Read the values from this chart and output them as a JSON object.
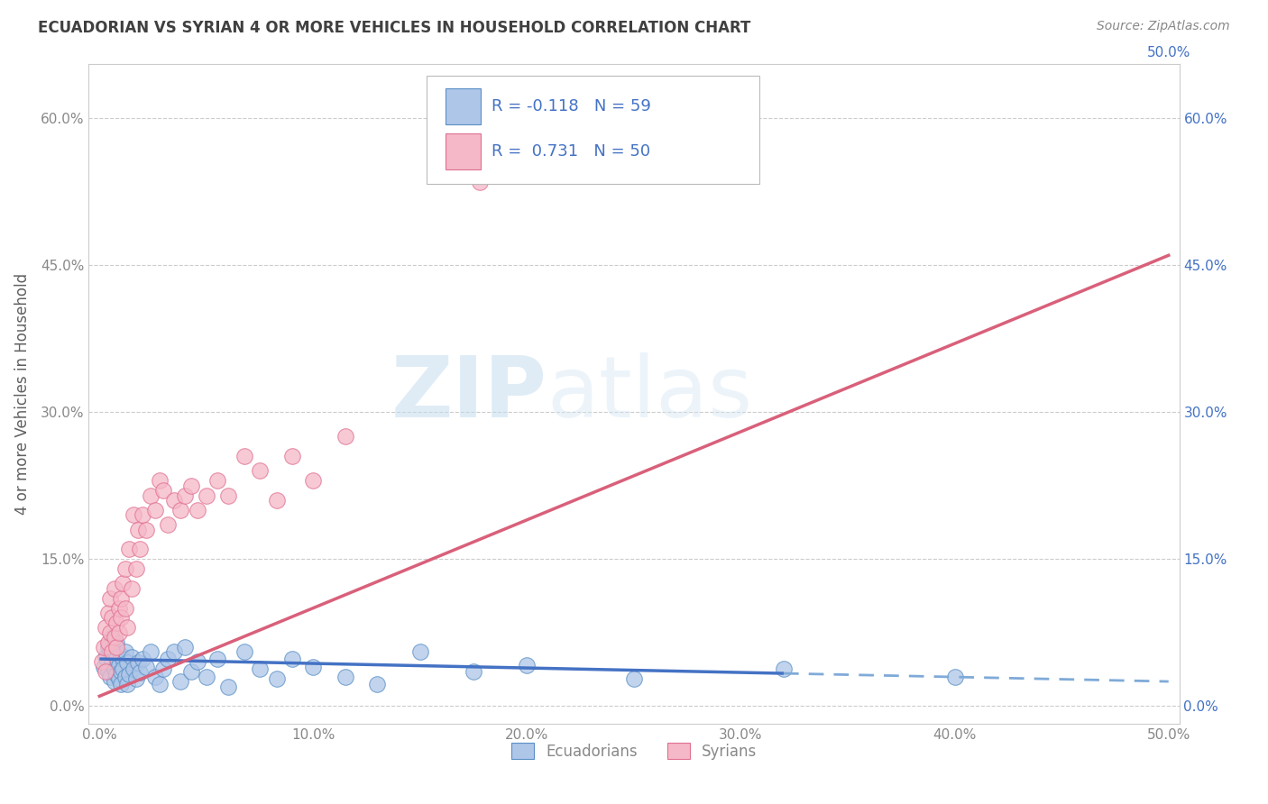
{
  "title": "ECUADORIAN VS SYRIAN 4 OR MORE VEHICLES IN HOUSEHOLD CORRELATION CHART",
  "source_text": "Source: ZipAtlas.com",
  "xlabel_ticks": [
    "0.0%",
    "10.0%",
    "20.0%",
    "30.0%",
    "40.0%",
    "50.0%"
  ],
  "ylabel_ticks": [
    "0.0%",
    "15.0%",
    "30.0%",
    "45.0%",
    "60.0%"
  ],
  "ylabel_label": "4 or more Vehicles in Household",
  "xlim": [
    -0.005,
    0.505
  ],
  "ylim": [
    -0.018,
    0.655
  ],
  "ecuadorian_color": "#aec6e8",
  "ecuadorian_edge": "#5a8fc5",
  "syrian_color": "#f5b8c8",
  "syrian_edge": "#e07090",
  "line_ecuadorian_solid_color": "#4472c4",
  "line_ecuadorian_dash_color": "#7faad8",
  "line_syrian_color": "#d9607a",
  "R_ecuadorian": -0.118,
  "N_ecuadorian": 59,
  "R_syrian": 0.731,
  "N_syrian": 50,
  "legend_labels": [
    "Ecuadorians",
    "Syrians"
  ],
  "watermark_zip": "ZIP",
  "watermark_atlas": "atlas",
  "background_color": "#ffffff",
  "grid_color": "#cccccc",
  "title_color": "#404040",
  "axis_label_color": "#606060",
  "tick_label_color": "#888888",
  "tick_label_blue": "#4472c4",
  "legend_R_color": "#4472c4",
  "source_color": "#888888",
  "ecuadorian_x": [
    0.002,
    0.003,
    0.004,
    0.004,
    0.005,
    0.005,
    0.006,
    0.006,
    0.007,
    0.007,
    0.007,
    0.008,
    0.008,
    0.008,
    0.009,
    0.009,
    0.01,
    0.01,
    0.01,
    0.011,
    0.011,
    0.012,
    0.012,
    0.013,
    0.013,
    0.014,
    0.015,
    0.016,
    0.017,
    0.018,
    0.019,
    0.02,
    0.022,
    0.024,
    0.026,
    0.028,
    0.03,
    0.032,
    0.035,
    0.038,
    0.04,
    0.043,
    0.046,
    0.05,
    0.055,
    0.06,
    0.068,
    0.075,
    0.083,
    0.09,
    0.1,
    0.115,
    0.13,
    0.15,
    0.175,
    0.2,
    0.25,
    0.32,
    0.4
  ],
  "ecuadorian_y": [
    0.04,
    0.05,
    0.035,
    0.06,
    0.03,
    0.055,
    0.045,
    0.07,
    0.038,
    0.055,
    0.025,
    0.048,
    0.032,
    0.065,
    0.042,
    0.028,
    0.052,
    0.035,
    0.022,
    0.048,
    0.038,
    0.03,
    0.055,
    0.022,
    0.044,
    0.032,
    0.05,
    0.038,
    0.028,
    0.044,
    0.034,
    0.048,
    0.04,
    0.055,
    0.03,
    0.022,
    0.038,
    0.048,
    0.055,
    0.025,
    0.06,
    0.035,
    0.045,
    0.03,
    0.048,
    0.02,
    0.055,
    0.038,
    0.028,
    0.048,
    0.04,
    0.03,
    0.022,
    0.055,
    0.035,
    0.042,
    0.028,
    0.038,
    0.03
  ],
  "syrian_x": [
    0.001,
    0.002,
    0.003,
    0.003,
    0.004,
    0.004,
    0.005,
    0.005,
    0.006,
    0.006,
    0.007,
    0.007,
    0.008,
    0.008,
    0.009,
    0.009,
    0.01,
    0.01,
    0.011,
    0.012,
    0.012,
    0.013,
    0.014,
    0.015,
    0.016,
    0.017,
    0.018,
    0.019,
    0.02,
    0.022,
    0.024,
    0.026,
    0.028,
    0.03,
    0.032,
    0.035,
    0.038,
    0.04,
    0.043,
    0.046,
    0.05,
    0.055,
    0.06,
    0.068,
    0.075,
    0.083,
    0.09,
    0.1,
    0.115,
    0.178
  ],
  "syrian_y": [
    0.045,
    0.06,
    0.08,
    0.035,
    0.065,
    0.095,
    0.075,
    0.11,
    0.055,
    0.09,
    0.07,
    0.12,
    0.085,
    0.06,
    0.1,
    0.075,
    0.11,
    0.09,
    0.125,
    0.1,
    0.14,
    0.08,
    0.16,
    0.12,
    0.195,
    0.14,
    0.18,
    0.16,
    0.195,
    0.18,
    0.215,
    0.2,
    0.23,
    0.22,
    0.185,
    0.21,
    0.2,
    0.215,
    0.225,
    0.2,
    0.215,
    0.23,
    0.215,
    0.255,
    0.24,
    0.21,
    0.255,
    0.23,
    0.275,
    0.535
  ],
  "ecu_line_x0": 0.0,
  "ecu_line_x1": 0.5,
  "ecu_line_y0": 0.048,
  "ecu_line_y1": 0.025,
  "ecu_line_solid_end": 0.32,
  "syr_line_x0": 0.0,
  "syr_line_x1": 0.5,
  "syr_line_y0": 0.01,
  "syr_line_y1": 0.46
}
